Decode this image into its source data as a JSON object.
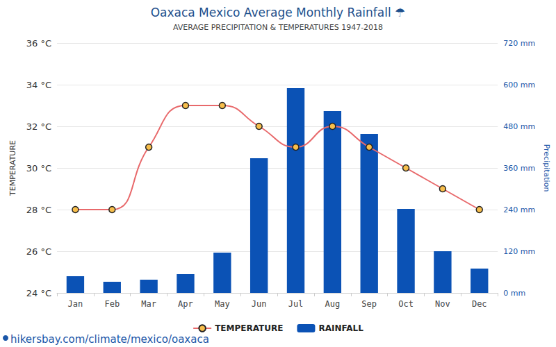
{
  "chart_data": {
    "type": "bar",
    "title": "Oaxaca Mexico Average Monthly Rainfall ☂",
    "subtitle": "AVERAGE PRECIPITATION & TEMPERATURES 1947-2018",
    "ylabel": "TEMPERATURE",
    "y2label": "Precipitation",
    "annotations": [
      "hikersbay.com/climate/mexico/oaxaca"
    ],
    "categories": [
      "Jan",
      "Feb",
      "Mar",
      "Apr",
      "May",
      "Jun",
      "Jul",
      "Aug",
      "Sep",
      "Oct",
      "Nov",
      "Dec"
    ],
    "series": [
      {
        "name": "TEMPERATURE",
        "type": "line",
        "color": "#e8696b",
        "marker": "circle",
        "values": [
          28,
          28,
          31,
          33,
          33,
          32,
          31,
          32,
          31,
          30,
          29,
          28
        ]
      },
      {
        "name": "RAINFALL",
        "type": "bar",
        "axis": "y2",
        "color": "#0b52b5",
        "values": [
          48,
          32,
          38,
          54,
          116,
          388,
          590,
          524,
          458,
          242,
          120,
          70
        ]
      }
    ],
    "ylim": [
      24,
      36
    ],
    "yticks": [
      {
        "value": 24,
        "label": "24 °C"
      },
      {
        "value": 26,
        "label": "26 °C"
      },
      {
        "value": 28,
        "label": "28 °C"
      },
      {
        "value": 30,
        "label": "30 °C"
      },
      {
        "value": 32,
        "label": "32 °C"
      },
      {
        "value": 34,
        "label": "34 °C"
      },
      {
        "value": 36,
        "label": "36 °C"
      }
    ],
    "y2lim": [
      0,
      720
    ],
    "y2ticks": [
      {
        "value": 0,
        "label": "0 mm"
      },
      {
        "value": 120,
        "label": "120 mm"
      },
      {
        "value": 240,
        "label": "240 mm"
      },
      {
        "value": 360,
        "label": "360 mm"
      },
      {
        "value": 480,
        "label": "480 mm"
      },
      {
        "value": 600,
        "label": "600 mm"
      },
      {
        "value": 720,
        "label": "720 mm"
      }
    ],
    "grid": true,
    "legend": "bottom"
  }
}
